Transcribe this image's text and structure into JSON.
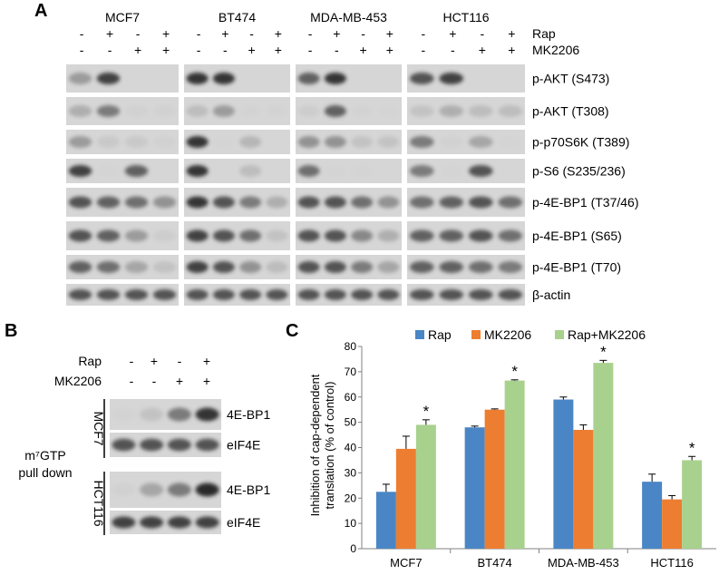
{
  "panel_a": {
    "letter": "A",
    "cell_lines": [
      "MCF7",
      "BT474",
      "MDA-MB-453",
      "HCT116"
    ],
    "treatment_rows": [
      {
        "label": "Rap",
        "signs": [
          "-",
          "+",
          "-",
          "+"
        ]
      },
      {
        "label": "MK2206",
        "signs": [
          "-",
          "-",
          "+",
          "+"
        ]
      }
    ],
    "blots": [
      {
        "label": "p-AKT (S473)",
        "bands": [
          [
            0.55,
            0.9,
            0.05,
            0.05
          ],
          [
            0.95,
            0.95,
            0.05,
            0.05
          ],
          [
            0.8,
            0.95,
            0.05,
            0.05
          ],
          [
            0.85,
            0.9,
            0.05,
            0.05
          ]
        ]
      },
      {
        "label": "p-AKT (T308)",
        "bands": [
          [
            0.45,
            0.7,
            0.15,
            0.15
          ],
          [
            0.35,
            0.55,
            0.12,
            0.12
          ],
          [
            0.2,
            0.8,
            0.12,
            0.1
          ],
          [
            0.3,
            0.45,
            0.35,
            0.35
          ]
        ]
      },
      {
        "label": "p-p70S6K (T389)",
        "bands": [
          [
            0.55,
            0.25,
            0.25,
            0.15
          ],
          [
            0.95,
            0.1,
            0.4,
            0.05
          ],
          [
            0.6,
            0.6,
            0.3,
            0.3
          ],
          [
            0.7,
            0.15,
            0.5,
            0.1
          ]
        ]
      },
      {
        "label": "p-S6 (S235/236)",
        "bands": [
          [
            0.9,
            0.1,
            0.8,
            0.05
          ],
          [
            0.95,
            0.05,
            0.35,
            0.05
          ],
          [
            0.75,
            0.1,
            0.1,
            0.05
          ],
          [
            0.7,
            0.1,
            0.85,
            0.05
          ]
        ]
      },
      {
        "label": "p-4E-BP1 (T37/46)",
        "bands": [
          [
            0.85,
            0.8,
            0.75,
            0.6
          ],
          [
            0.95,
            0.85,
            0.7,
            0.45
          ],
          [
            0.85,
            0.85,
            0.75,
            0.6
          ],
          [
            0.75,
            0.8,
            0.85,
            0.75
          ]
        ]
      },
      {
        "label": "p-4E-BP1 (S65)",
        "bands": [
          [
            0.85,
            0.8,
            0.55,
            0.2
          ],
          [
            0.9,
            0.85,
            0.75,
            0.3
          ],
          [
            0.85,
            0.85,
            0.65,
            0.45
          ],
          [
            0.8,
            0.8,
            0.85,
            0.75
          ]
        ]
      },
      {
        "label": "p-4E-BP1 (T70)",
        "bands": [
          [
            0.8,
            0.75,
            0.5,
            0.3
          ],
          [
            0.9,
            0.85,
            0.6,
            0.35
          ],
          [
            0.85,
            0.85,
            0.7,
            0.5
          ],
          [
            0.8,
            0.8,
            0.75,
            0.7
          ]
        ]
      },
      {
        "label": "β-actin",
        "bands": [
          [
            0.85,
            0.85,
            0.85,
            0.85
          ],
          [
            0.85,
            0.85,
            0.85,
            0.85
          ],
          [
            0.85,
            0.85,
            0.85,
            0.85
          ],
          [
            0.85,
            0.85,
            0.85,
            0.85
          ]
        ]
      }
    ]
  },
  "panel_b": {
    "letter": "B",
    "treatment_rows": [
      {
        "label": "Rap",
        "signs": [
          "-",
          "+",
          "-",
          "+"
        ]
      },
      {
        "label": "MK2206",
        "signs": [
          "-",
          "-",
          "+",
          "+"
        ]
      }
    ],
    "side_label_line1": "m⁷GTP",
    "side_label_line2": "pull down",
    "groups": [
      {
        "cell_line": "MCF7",
        "blots": [
          {
            "label": "4E-BP1",
            "bands": [
              0.12,
              0.3,
              0.7,
              0.95
            ]
          },
          {
            "label": "eIF4E",
            "bands": [
              0.85,
              0.85,
              0.85,
              0.85
            ]
          }
        ]
      },
      {
        "cell_line": "HCT116",
        "blots": [
          {
            "label": "4E-BP1",
            "bands": [
              0.15,
              0.5,
              0.7,
              0.98
            ]
          },
          {
            "label": "eIF4E",
            "bands": [
              0.9,
              0.9,
              0.9,
              0.9
            ]
          }
        ]
      }
    ]
  },
  "panel_c": {
    "letter": "C",
    "chart_data": {
      "type": "bar",
      "categories": [
        "MCF7",
        "BT474",
        "MDA-MB-453",
        "HCT116"
      ],
      "series": [
        {
          "name": "Rap",
          "color": "#4a86c5",
          "values": [
            22.5,
            48,
            59,
            26.5
          ],
          "errors": [
            3,
            0.5,
            1,
            3
          ]
        },
        {
          "name": "MK2206",
          "color": "#ed7d31",
          "values": [
            39.5,
            55,
            47,
            19.5
          ],
          "errors": [
            5,
            0.3,
            2,
            1.5
          ]
        },
        {
          "name": "Rap+MK2206",
          "color": "#a9d18e",
          "values": [
            49,
            66.5,
            73.5,
            35
          ],
          "errors": [
            2,
            0.3,
            1,
            1.5
          ]
        }
      ],
      "significance_marker": "*",
      "significant": [
        false,
        false,
        true
      ],
      "ylabel_line1": "Inhibition of cap-dependent",
      "ylabel_line2": "translation  (% of control)",
      "ylim": [
        0,
        80
      ],
      "yticks": [
        0,
        10,
        20,
        30,
        40,
        50,
        60,
        70,
        80
      ],
      "legend_position": "top",
      "grid": false
    }
  }
}
